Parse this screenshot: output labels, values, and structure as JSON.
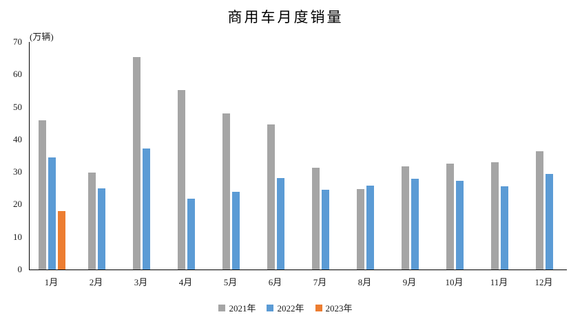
{
  "chart_data": {
    "type": "bar",
    "title": "商用车月度销量",
    "unit_label": "(万辆)",
    "categories": [
      "1月",
      "2月",
      "3月",
      "4月",
      "5月",
      "6月",
      "7月",
      "8月",
      "9月",
      "10月",
      "11月",
      "12月"
    ],
    "series": [
      {
        "name": "2021年",
        "color": "#A5A5A5",
        "values": [
          45.9,
          29.9,
          65.3,
          55.1,
          48.1,
          44.6,
          31.4,
          24.7,
          31.7,
          32.5,
          33.0,
          36.4
        ]
      },
      {
        "name": "2022年",
        "color": "#5B9BD5",
        "values": [
          34.5,
          25.0,
          37.2,
          21.7,
          24.0,
          28.1,
          24.5,
          25.8,
          27.9,
          27.3,
          25.5,
          29.3
        ]
      },
      {
        "name": "2023年",
        "color": "#ED7D31",
        "values": [
          18.0,
          null,
          null,
          null,
          null,
          null,
          null,
          null,
          null,
          null,
          null,
          null
        ]
      }
    ],
    "ylim": [
      0,
      70
    ],
    "yticks": [
      0,
      10,
      20,
      30,
      40,
      50,
      60,
      70
    ],
    "grid": false,
    "legend_position": "bottom",
    "axis_color": "#000000",
    "text_color": "#1a1a1a"
  }
}
